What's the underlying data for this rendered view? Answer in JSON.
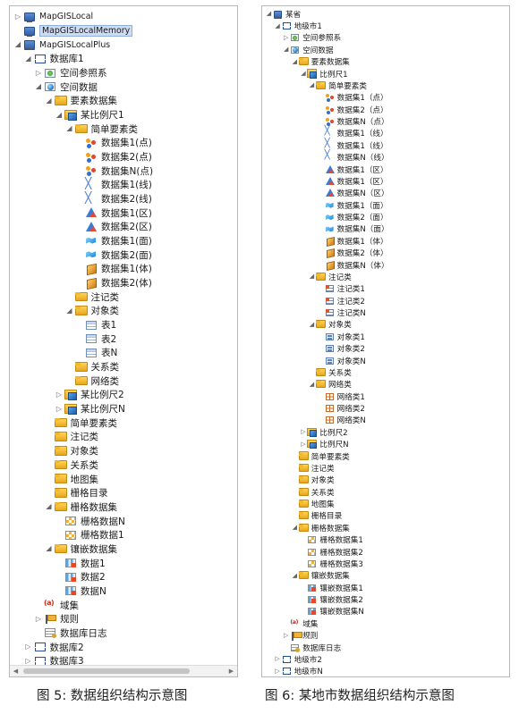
{
  "captions": {
    "left": "图 5: 数据组织结构示意图",
    "right": "图 6: 某地市数据组织结构示意图"
  },
  "left_tree": [
    {
      "level": 0,
      "exp": "closed",
      "icon": "computer",
      "label": "MapGISLocal",
      "mono": true
    },
    {
      "level": 0,
      "exp": "none",
      "icon": "computer",
      "label": "MapGISLocalMemory",
      "mono": true,
      "selected": true
    },
    {
      "level": 0,
      "exp": "open",
      "icon": "computer",
      "label": "MapGISLocalPlus",
      "mono": true
    },
    {
      "level": 1,
      "exp": "open",
      "icon": "db",
      "label": "数据库1"
    },
    {
      "level": 2,
      "exp": "closed",
      "icon": "srs",
      "label": "空间参照系"
    },
    {
      "level": 2,
      "exp": "open",
      "icon": "spatial",
      "label": "空间数据"
    },
    {
      "level": 3,
      "exp": "open",
      "icon": "folder",
      "label": "要素数据集"
    },
    {
      "level": 4,
      "exp": "open",
      "icon": "scale",
      "label": "某比例尺1"
    },
    {
      "level": 5,
      "exp": "open",
      "icon": "folder",
      "label": "简单要素类"
    },
    {
      "level": 6,
      "exp": "none",
      "icon": "point",
      "label": "数据集1(点)"
    },
    {
      "level": 6,
      "exp": "none",
      "icon": "point",
      "label": "数据集2(点)"
    },
    {
      "level": 6,
      "exp": "none",
      "icon": "point",
      "label": "数据集N(点)"
    },
    {
      "level": 6,
      "exp": "none",
      "icon": "line",
      "label": "数据集1(线)"
    },
    {
      "level": 6,
      "exp": "none",
      "icon": "line",
      "label": "数据集2(线)"
    },
    {
      "level": 6,
      "exp": "none",
      "icon": "region",
      "label": "数据集1(区)"
    },
    {
      "level": 6,
      "exp": "none",
      "icon": "region",
      "label": "数据集2(区)"
    },
    {
      "level": 6,
      "exp": "none",
      "icon": "surface",
      "label": "数据集1(面)"
    },
    {
      "level": 6,
      "exp": "none",
      "icon": "surface",
      "label": "数据集2(面)"
    },
    {
      "level": 6,
      "exp": "none",
      "icon": "body",
      "label": "数据集1(体)"
    },
    {
      "level": 6,
      "exp": "none",
      "icon": "body",
      "label": "数据集2(体)"
    },
    {
      "level": 5,
      "exp": "none",
      "icon": "folder",
      "label": "注记类"
    },
    {
      "level": 5,
      "exp": "open",
      "icon": "folder",
      "label": "对象类"
    },
    {
      "level": 6,
      "exp": "none",
      "icon": "table",
      "label": "表1"
    },
    {
      "level": 6,
      "exp": "none",
      "icon": "table",
      "label": "表2"
    },
    {
      "level": 6,
      "exp": "none",
      "icon": "table",
      "label": "表N"
    },
    {
      "level": 5,
      "exp": "none",
      "icon": "folder",
      "label": "关系类"
    },
    {
      "level": 5,
      "exp": "none",
      "icon": "folder",
      "label": "网络类"
    },
    {
      "level": 4,
      "exp": "closed",
      "icon": "scale",
      "label": "某比例尺2"
    },
    {
      "level": 4,
      "exp": "closed",
      "icon": "scale",
      "label": "某比例尺N"
    },
    {
      "level": 3,
      "exp": "none",
      "icon": "folder",
      "label": "简单要素类"
    },
    {
      "level": 3,
      "exp": "none",
      "icon": "folder",
      "label": "注记类"
    },
    {
      "level": 3,
      "exp": "none",
      "icon": "folder",
      "label": "对象类"
    },
    {
      "level": 3,
      "exp": "none",
      "icon": "folder",
      "label": "关系类"
    },
    {
      "level": 3,
      "exp": "none",
      "icon": "folder",
      "label": "地图集"
    },
    {
      "level": 3,
      "exp": "none",
      "icon": "folder",
      "label": "栅格目录"
    },
    {
      "level": 3,
      "exp": "open",
      "icon": "folder",
      "label": "栅格数据集"
    },
    {
      "level": 4,
      "exp": "none",
      "icon": "raster",
      "label": "栅格数据N"
    },
    {
      "level": 4,
      "exp": "none",
      "icon": "raster",
      "label": "栅格数据1"
    },
    {
      "level": 3,
      "exp": "open",
      "icon": "folder",
      "label": "镶嵌数据集"
    },
    {
      "level": 4,
      "exp": "none",
      "icon": "mosaic",
      "label": "数据1"
    },
    {
      "level": 4,
      "exp": "none",
      "icon": "mosaic",
      "label": "数据2"
    },
    {
      "level": 4,
      "exp": "none",
      "icon": "mosaic",
      "label": "数据N"
    },
    {
      "level": 2,
      "exp": "none",
      "icon": "domain",
      "label": "域集"
    },
    {
      "level": 2,
      "exp": "closed",
      "icon": "rule",
      "label": "规则"
    },
    {
      "level": 2,
      "exp": "none",
      "icon": "log",
      "label": "数据库日志"
    },
    {
      "level": 1,
      "exp": "closed",
      "icon": "db",
      "label": "数据库2"
    },
    {
      "level": 1,
      "exp": "closed",
      "icon": "db",
      "label": "数据库3"
    }
  ],
  "right_tree": [
    {
      "level": 0,
      "exp": "open",
      "icon": "computer",
      "label": "某省"
    },
    {
      "level": 1,
      "exp": "open",
      "icon": "db",
      "label": "地级市1"
    },
    {
      "level": 2,
      "exp": "closed",
      "icon": "srs",
      "label": "空间参照系"
    },
    {
      "level": 2,
      "exp": "open",
      "icon": "spatial",
      "label": "空间数据"
    },
    {
      "level": 3,
      "exp": "open",
      "icon": "folder",
      "label": "要素数据集"
    },
    {
      "level": 4,
      "exp": "open",
      "icon": "scale",
      "label": "比例尺1"
    },
    {
      "level": 5,
      "exp": "open",
      "icon": "folder",
      "label": "简单要素类"
    },
    {
      "level": 6,
      "exp": "none",
      "icon": "point",
      "label": "数据集1（点）"
    },
    {
      "level": 6,
      "exp": "none",
      "icon": "point",
      "label": "数据集2（点）"
    },
    {
      "level": 6,
      "exp": "none",
      "icon": "point",
      "label": "数据集N（点）"
    },
    {
      "level": 6,
      "exp": "none",
      "icon": "line",
      "label": "数据集1（线）"
    },
    {
      "level": 6,
      "exp": "none",
      "icon": "line",
      "label": "数据集1（线）"
    },
    {
      "level": 6,
      "exp": "none",
      "icon": "line",
      "label": "数据集N（线）"
    },
    {
      "level": 6,
      "exp": "none",
      "icon": "region",
      "label": "数据集1（区）"
    },
    {
      "level": 6,
      "exp": "none",
      "icon": "region",
      "label": "数据集1（区）"
    },
    {
      "level": 6,
      "exp": "none",
      "icon": "region",
      "label": "数据集N（区）"
    },
    {
      "level": 6,
      "exp": "none",
      "icon": "surface",
      "label": "数据集1（面）"
    },
    {
      "level": 6,
      "exp": "none",
      "icon": "surface",
      "label": "数据集2（面）"
    },
    {
      "level": 6,
      "exp": "none",
      "icon": "surface",
      "label": "数据集N（面）"
    },
    {
      "level": 6,
      "exp": "none",
      "icon": "body",
      "label": "数据集1（体）"
    },
    {
      "level": 6,
      "exp": "none",
      "icon": "body",
      "label": "数据集2（体）"
    },
    {
      "level": 6,
      "exp": "none",
      "icon": "body",
      "label": "数据集N（体）"
    },
    {
      "level": 5,
      "exp": "open",
      "icon": "folder",
      "label": "注记类"
    },
    {
      "level": 6,
      "exp": "none",
      "icon": "annot",
      "label": "注记类1"
    },
    {
      "level": 6,
      "exp": "none",
      "icon": "annot",
      "label": "注记类2"
    },
    {
      "level": 6,
      "exp": "none",
      "icon": "annot",
      "label": "注记类N"
    },
    {
      "level": 5,
      "exp": "open",
      "icon": "folder",
      "label": "对象类"
    },
    {
      "level": 6,
      "exp": "none",
      "icon": "object",
      "label": "对象类1"
    },
    {
      "level": 6,
      "exp": "none",
      "icon": "object",
      "label": "对象类2"
    },
    {
      "level": 6,
      "exp": "none",
      "icon": "object",
      "label": "对象类N"
    },
    {
      "level": 5,
      "exp": "none",
      "icon": "folder",
      "label": "关系类"
    },
    {
      "level": 5,
      "exp": "open",
      "icon": "folder",
      "label": "网络类"
    },
    {
      "level": 6,
      "exp": "none",
      "icon": "network",
      "label": "网络类1"
    },
    {
      "level": 6,
      "exp": "none",
      "icon": "network",
      "label": "网络类2"
    },
    {
      "level": 6,
      "exp": "none",
      "icon": "network",
      "label": "网络类N"
    },
    {
      "level": 4,
      "exp": "closed",
      "icon": "scale",
      "label": "比例尺2"
    },
    {
      "level": 4,
      "exp": "closed",
      "icon": "scale",
      "label": "比例尺N"
    },
    {
      "level": 3,
      "exp": "none",
      "icon": "folder",
      "label": "简单要素类"
    },
    {
      "level": 3,
      "exp": "none",
      "icon": "folder",
      "label": "注记类"
    },
    {
      "level": 3,
      "exp": "none",
      "icon": "folder",
      "label": "对象类"
    },
    {
      "level": 3,
      "exp": "none",
      "icon": "folder",
      "label": "关系类"
    },
    {
      "level": 3,
      "exp": "none",
      "icon": "folder",
      "label": "地图集"
    },
    {
      "level": 3,
      "exp": "none",
      "icon": "folder",
      "label": "栅格目录"
    },
    {
      "level": 3,
      "exp": "open",
      "icon": "folder",
      "label": "栅格数据集"
    },
    {
      "level": 4,
      "exp": "none",
      "icon": "raster",
      "label": "栅格数据集1"
    },
    {
      "level": 4,
      "exp": "none",
      "icon": "raster",
      "label": "栅格数据集2"
    },
    {
      "level": 4,
      "exp": "none",
      "icon": "raster",
      "label": "栅格数据集3"
    },
    {
      "level": 3,
      "exp": "open",
      "icon": "folder",
      "label": "镶嵌数据集"
    },
    {
      "level": 4,
      "exp": "none",
      "icon": "mosaic",
      "label": "镶嵌数据集1"
    },
    {
      "level": 4,
      "exp": "none",
      "icon": "mosaic",
      "label": "镶嵌数据集2"
    },
    {
      "level": 4,
      "exp": "none",
      "icon": "mosaic",
      "label": "镶嵌数据集N"
    },
    {
      "level": 2,
      "exp": "none",
      "icon": "domain",
      "label": "域集"
    },
    {
      "level": 2,
      "exp": "closed",
      "icon": "rule",
      "label": "规则"
    },
    {
      "level": 2,
      "exp": "none",
      "icon": "log",
      "label": "数据库日志"
    },
    {
      "level": 1,
      "exp": "closed",
      "icon": "db",
      "label": "地级市2"
    },
    {
      "level": 1,
      "exp": "closed",
      "icon": "db",
      "label": "地级市N"
    }
  ]
}
